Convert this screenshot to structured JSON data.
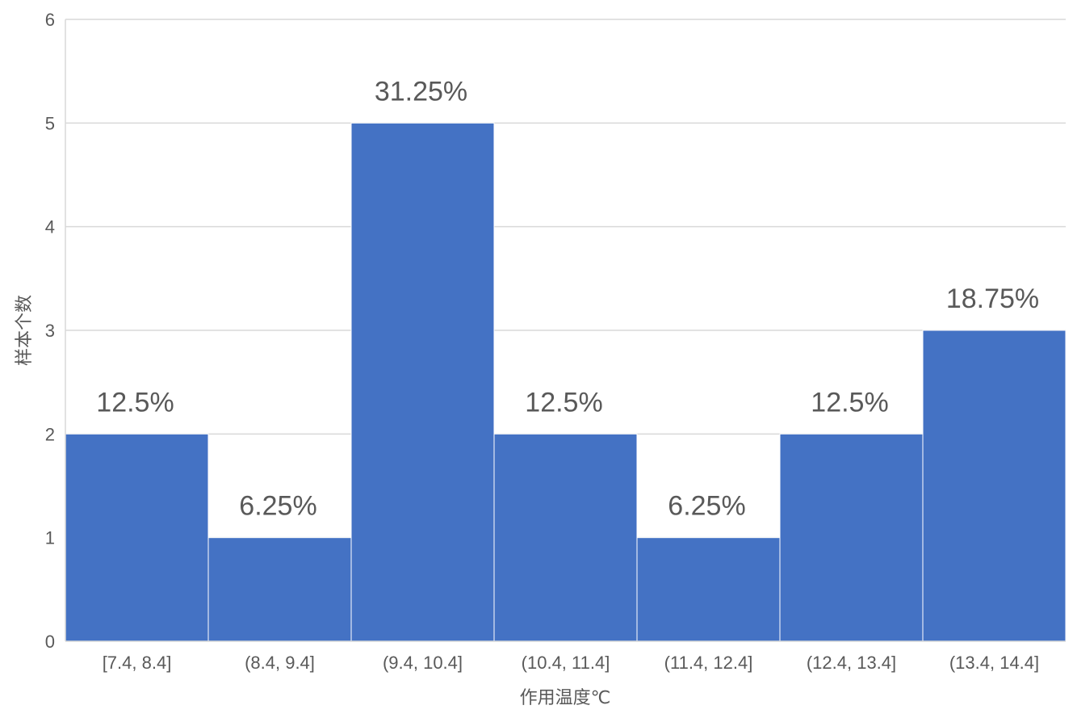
{
  "chart_data": {
    "type": "bar",
    "categories": [
      "[7.4, 8.4]",
      "(8.4, 9.4]",
      "(9.4, 10.4]",
      "(10.4, 11.4]",
      "(11.4, 12.4]",
      "(12.4, 13.4]",
      "(13.4, 14.4]"
    ],
    "values": [
      2,
      1,
      5,
      2,
      1,
      2,
      3
    ],
    "data_labels": [
      "12.5%",
      "6.25%",
      "31.25%",
      "12.5%",
      "6.25%",
      "12.5%",
      "18.75%"
    ],
    "title": "",
    "xlabel": "作用温度℃",
    "ylabel": "样本个数",
    "ylim": [
      0,
      6
    ],
    "yticks": [
      "0",
      "1",
      "2",
      "3",
      "4",
      "5",
      "6"
    ],
    "grid": true,
    "bar_color": "#4472C4",
    "grid_color": "#D9D9D9",
    "text_color": "#595959"
  }
}
